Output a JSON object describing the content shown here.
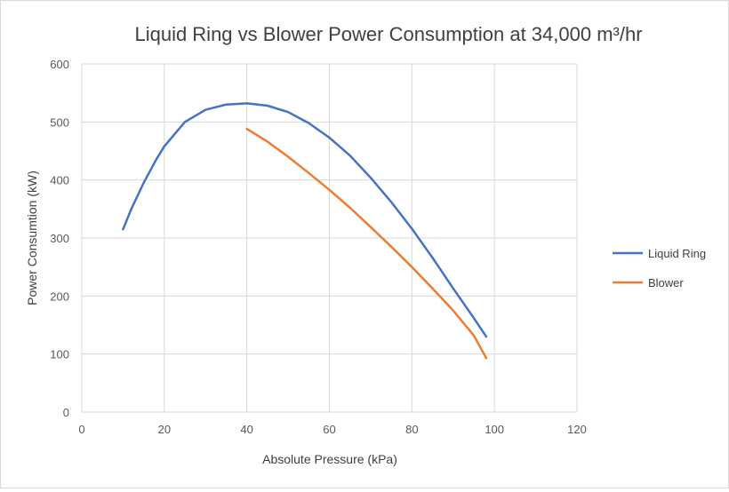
{
  "chart_data": {
    "type": "line",
    "title": "Liquid Ring  vs Blower Power Consumption  at 34,000 m³/hr",
    "xlabel": "Absolute Pressure (kPa)",
    "ylabel": "Power Consumtion (kW)",
    "xlim": [
      0,
      120
    ],
    "ylim": [
      0,
      600
    ],
    "xticks": [
      0,
      20,
      40,
      60,
      80,
      100,
      120
    ],
    "yticks": [
      0,
      100,
      200,
      300,
      400,
      500,
      600
    ],
    "x_tick_labels": [
      "0",
      "20",
      "40",
      "60",
      "80",
      "100",
      "120"
    ],
    "y_tick_labels": [
      "0",
      "100",
      "200",
      "300",
      "400",
      "500",
      "600"
    ],
    "grid": true,
    "legend_position": "right",
    "series": [
      {
        "name": "Liquid Ring",
        "color": "#4472c4",
        "x": [
          10,
          12,
          15,
          18,
          20,
          25,
          30,
          35,
          40,
          45,
          50,
          55,
          60,
          65,
          70,
          75,
          80,
          85,
          90,
          95,
          98
        ],
        "y": [
          315,
          350,
          395,
          435,
          458,
          500,
          521,
          530,
          532,
          528,
          517,
          498,
          473,
          442,
          404,
          362,
          316,
          266,
          213,
          162,
          130
        ]
      },
      {
        "name": "Blower",
        "color": "#ed7d31",
        "x": [
          40,
          45,
          50,
          55,
          60,
          65,
          70,
          75,
          80,
          85,
          90,
          95,
          98
        ],
        "y": [
          488,
          466,
          440,
          412,
          383,
          352,
          319,
          285,
          250,
          213,
          175,
          132,
          93
        ]
      }
    ]
  }
}
